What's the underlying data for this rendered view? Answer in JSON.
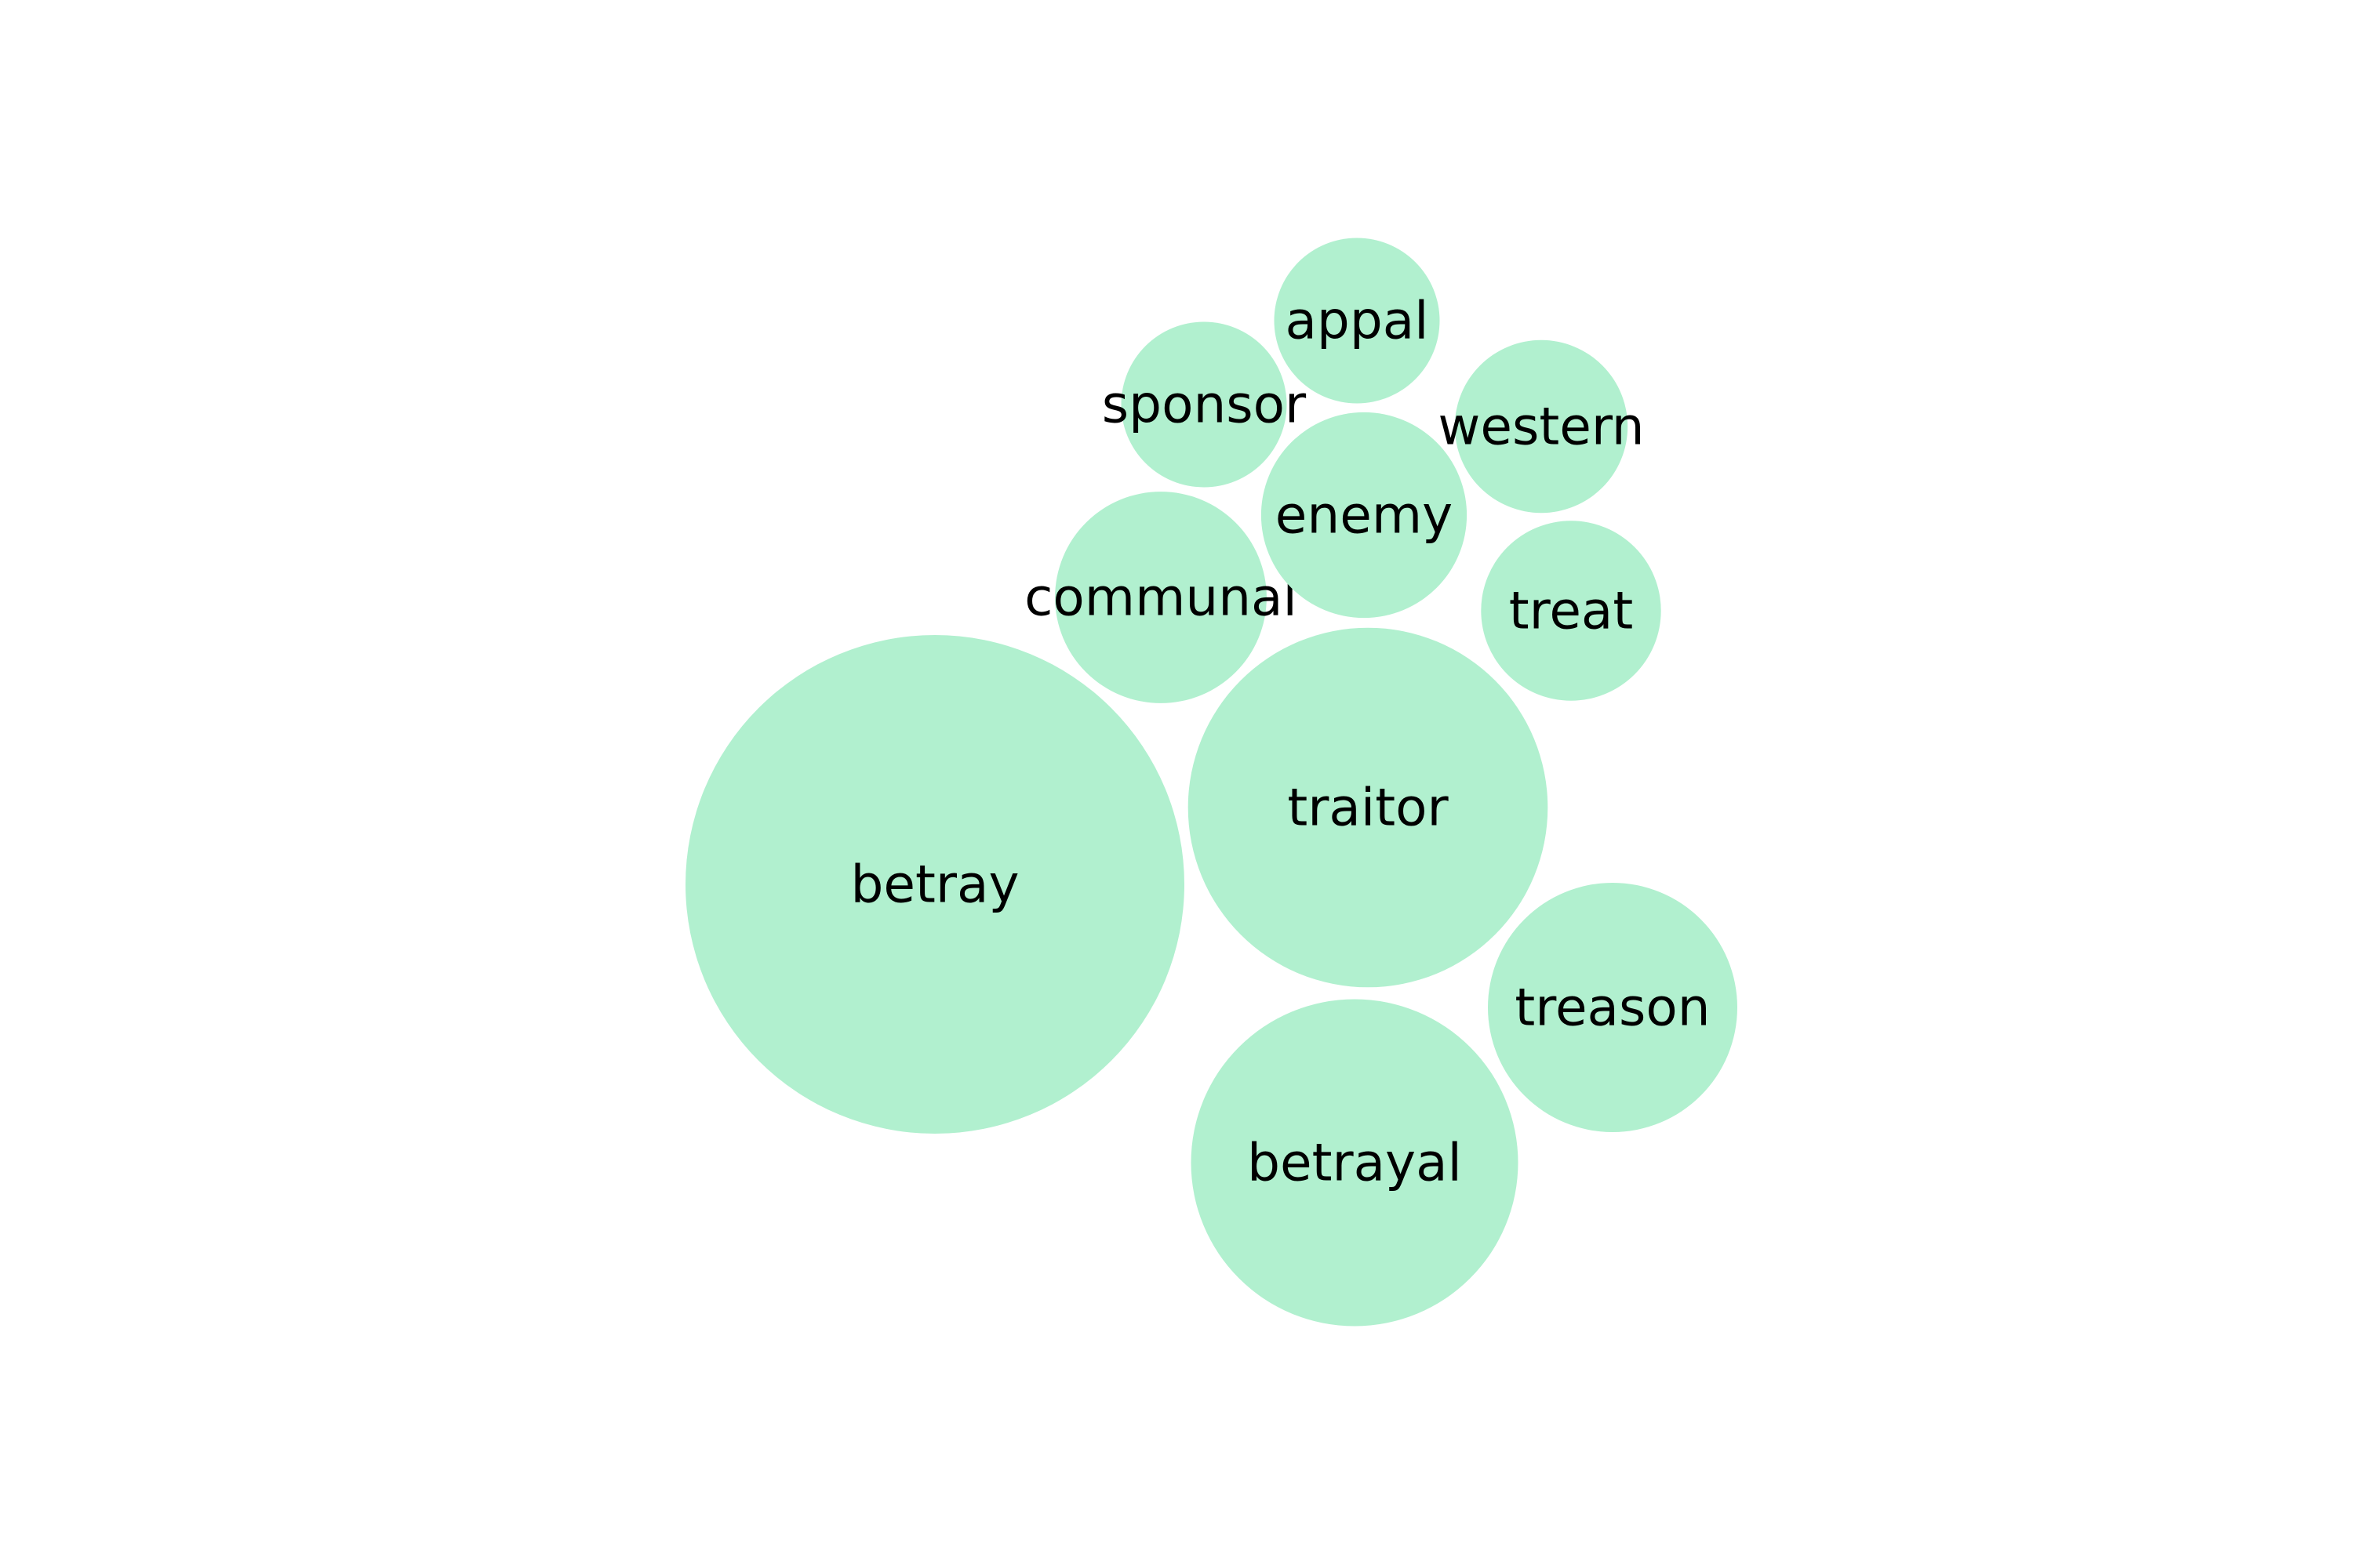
{
  "chart_data": {
    "type": "bubble",
    "title": "",
    "color": "#b1f0cf",
    "label_color": "#000000",
    "bubbles": [
      {
        "label": "betray",
        "value": 100
      },
      {
        "label": "traitor",
        "value": 52
      },
      {
        "label": "betrayal",
        "value": 43
      },
      {
        "label": "treason",
        "value": 25
      },
      {
        "label": "communal",
        "value": 18
      },
      {
        "label": "enemy",
        "value": 17
      },
      {
        "label": "treat",
        "value": 13
      },
      {
        "label": "western",
        "value": 12
      },
      {
        "label": "sponsor",
        "value": 11
      },
      {
        "label": "appal",
        "value": 11
      }
    ]
  }
}
